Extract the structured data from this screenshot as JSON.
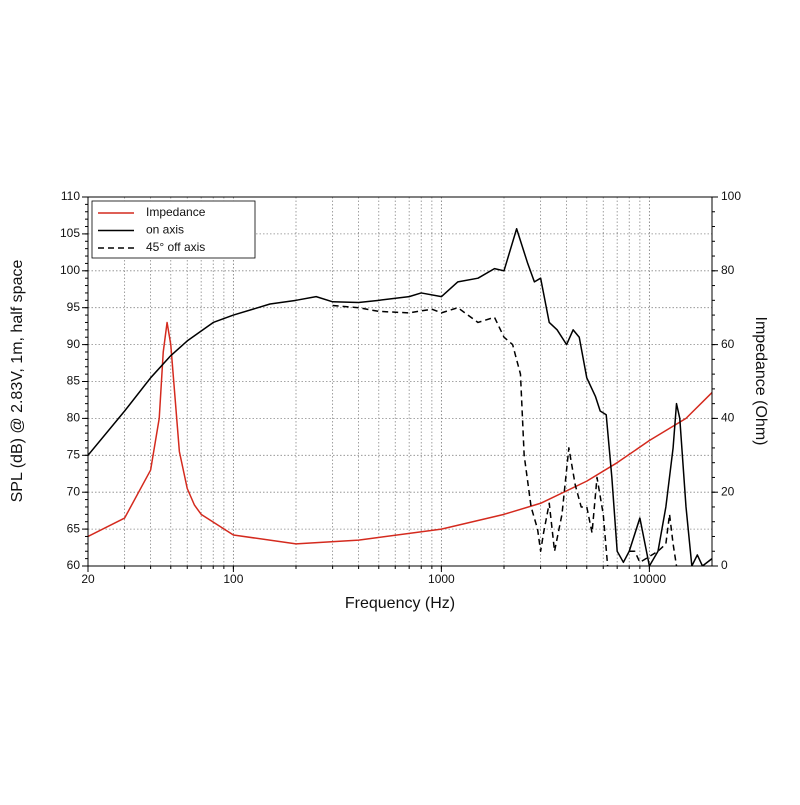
{
  "chart_data": {
    "type": "line",
    "xlabel": "Frequency (Hz)",
    "ylabel": "SPL (dB) @ 2.83V, 1m, half space",
    "y2label": "Impedance (Ohm)",
    "xscale": "log",
    "xlim": [
      20,
      20000
    ],
    "xticks": [
      20,
      100,
      1000,
      10000
    ],
    "ylim": [
      60,
      110
    ],
    "yticks": [
      60,
      65,
      70,
      75,
      80,
      85,
      90,
      95,
      100,
      105,
      110
    ],
    "y2lim": [
      0,
      100
    ],
    "y2ticks": [
      0,
      20,
      40,
      60,
      80,
      100
    ],
    "grid": true,
    "legend": "upper left",
    "series": [
      {
        "name": "Impedance",
        "color": "#d42a1e",
        "axis": "y2",
        "dashed": false,
        "x": [
          20,
          30,
          40,
          44,
          46,
          48,
          50,
          55,
          60,
          65,
          70,
          100,
          200,
          400,
          1000,
          2000,
          3000,
          5000,
          7000,
          10000,
          15000,
          20000
        ],
        "values": [
          8,
          13,
          26,
          40,
          58,
          66,
          60,
          31,
          21,
          16.5,
          14,
          8.4,
          6,
          7,
          10,
          14,
          17,
          23,
          28,
          34,
          40,
          47
        ]
      },
      {
        "name": "on axis",
        "color": "#000000",
        "dashed": false,
        "x": [
          20,
          30,
          40,
          50,
          60,
          80,
          100,
          150,
          200,
          250,
          300,
          400,
          500,
          700,
          800,
          1000,
          1200,
          1500,
          1800,
          2000,
          2300,
          2600,
          2800,
          3000,
          3300,
          3600,
          4000,
          4300,
          4600,
          5000,
          5500,
          5800,
          6200,
          6600,
          7000,
          7500,
          8000,
          9000,
          10000,
          11000,
          12000,
          13000,
          13500,
          14000,
          15000,
          16000,
          17000,
          18000,
          20000
        ],
        "values": [
          75,
          81,
          85.5,
          88.5,
          90.5,
          93,
          94,
          95.5,
          96,
          96.5,
          95.8,
          95.7,
          96,
          96.5,
          97,
          96.5,
          98.5,
          99,
          100.3,
          100,
          105.7,
          101,
          98.5,
          99,
          93,
          92,
          90,
          92,
          91,
          85.5,
          83,
          81,
          80.5,
          72,
          62,
          60.5,
          62,
          66.5,
          60,
          62,
          68,
          76,
          82,
          80,
          68,
          60,
          61.5,
          60,
          61
        ]
      },
      {
        "name": "45° off axis",
        "color": "#000000",
        "dashed": true,
        "x": [
          300,
          400,
          500,
          700,
          900,
          1000,
          1200,
          1500,
          1800,
          2000,
          2200,
          2400,
          2500,
          2700,
          2900,
          3000,
          3100,
          3300,
          3500,
          3800,
          4100,
          4400,
          4700,
          5000,
          5300,
          5600,
          6000,
          6300,
          7000,
          8000,
          8500,
          9000,
          11000,
          12000,
          12500,
          13000,
          13500
        ],
        "values": [
          95.3,
          95,
          94.5,
          94.3,
          94.8,
          94.3,
          95,
          93,
          93.7,
          91,
          90,
          86,
          75,
          68,
          65,
          62,
          64.5,
          68.5,
          62,
          67,
          76,
          71,
          68,
          68,
          64.5,
          72,
          67,
          60,
          null,
          62,
          62,
          60.5,
          62,
          63,
          67,
          63,
          60
        ]
      }
    ]
  }
}
